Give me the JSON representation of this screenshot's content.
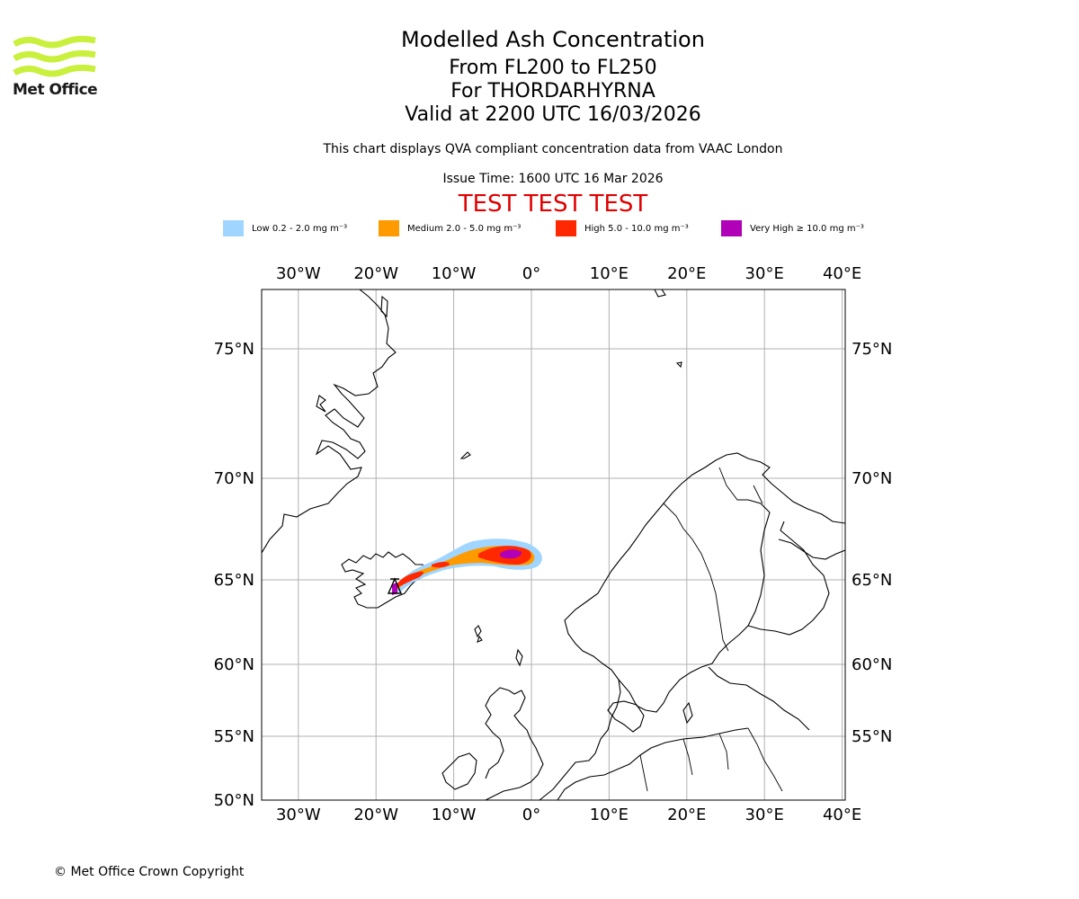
{
  "brand": {
    "name": "Met Office",
    "color": "#c8f03c"
  },
  "header": {
    "title": "Modelled Ash Concentration",
    "levels": "From FL200 to FL250",
    "volcano": "For THORDARHYRNA",
    "valid": "Valid at 2200 UTC 16/03/2026",
    "description": "This chart displays QVA compliant concentration data from VAAC London",
    "issue_time": "Issue Time: 1600 UTC 16 Mar 2026",
    "test_banner": "TEST TEST TEST",
    "test_color": "#e00000"
  },
  "legend": [
    {
      "label": "Low 0.2 - 2.0 mg m⁻³",
      "color": "#9fd5ff"
    },
    {
      "label": "Medium 2.0 - 5.0 mg m⁻³",
      "color": "#ff9a00"
    },
    {
      "label": "High 5.0 - 10.0 mg m⁻³",
      "color": "#ff2800"
    },
    {
      "label": "Very High ≥ 10.0 mg m⁻³",
      "color": "#b000b8"
    }
  ],
  "map": {
    "lon_labels": [
      "30°W",
      "20°W",
      "10°W",
      "0°",
      "10°E",
      "20°E",
      "30°E",
      "40°E"
    ],
    "lon_values": [
      -30,
      -20,
      -10,
      0,
      10,
      20,
      30,
      40
    ],
    "lat_labels": [
      "75°N",
      "70°N",
      "65°N",
      "60°N",
      "55°N",
      "50°N"
    ],
    "lat_values": [
      75,
      70,
      65,
      60,
      55,
      50
    ],
    "lon_range": [
      -35,
      40
    ],
    "lat_range": [
      50,
      77
    ]
  },
  "footer": {
    "copyright": "© Met Office Crown Copyright"
  }
}
